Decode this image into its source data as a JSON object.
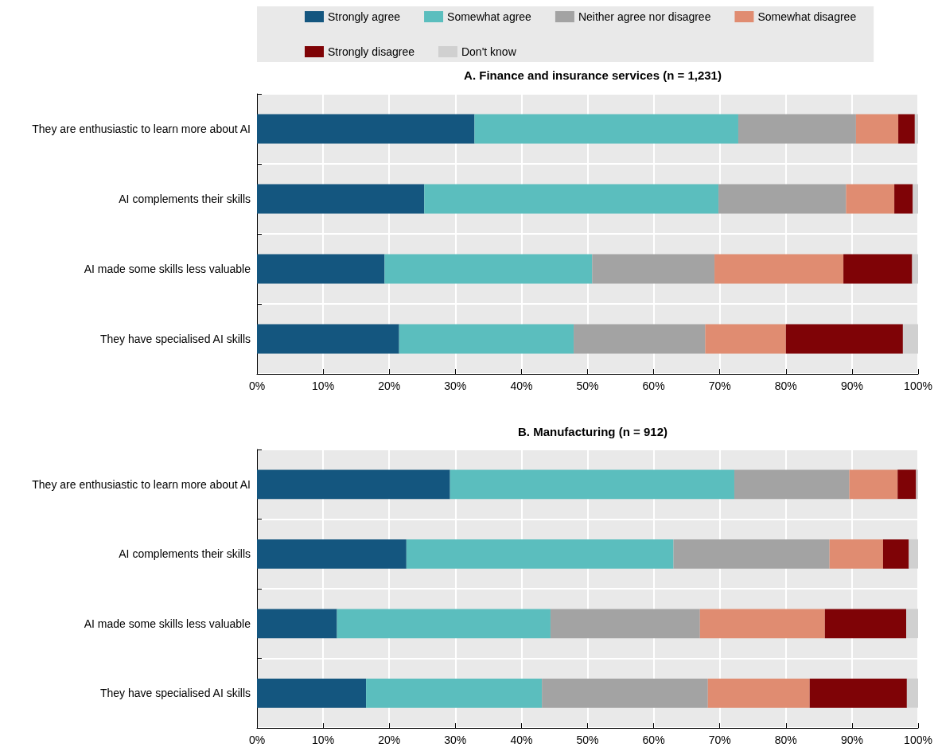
{
  "chart_data": [
    {
      "type": "bar",
      "title": "A. Finance and insurance services (n = 1,231)",
      "orientation": "horizontal",
      "stacked": true,
      "categories": [
        "They are enthusiastic to learn more about AI",
        "AI complements their skills",
        "AI made some skills less valuable",
        "They have specialised AI skills"
      ],
      "series": [
        {
          "name": "Strongly agree",
          "color": "#14567f",
          "values": [
            32.9,
            25.3,
            19.3,
            21.5
          ]
        },
        {
          "name": "Somewhat agree",
          "color": "#5bbebe",
          "values": [
            39.9,
            44.5,
            31.4,
            26.4
          ]
        },
        {
          "name": "Neither agree nor disagree",
          "color": "#a3a3a3",
          "values": [
            17.8,
            19.3,
            18.5,
            19.9
          ]
        },
        {
          "name": "Somewhat disagree",
          "color": "#e08c71",
          "values": [
            6.4,
            7.3,
            19.5,
            12.2
          ]
        },
        {
          "name": "Strongly disagree",
          "color": "#7f0306",
          "values": [
            2.5,
            2.8,
            10.4,
            17.7
          ]
        },
        {
          "name": "Don't know",
          "color": "#d0d0d0",
          "values": [
            0.5,
            0.8,
            0.9,
            2.3
          ]
        }
      ],
      "xlim": [
        0,
        100
      ],
      "xticks": [
        {
          "value": 0,
          "label": "0%"
        },
        {
          "value": 10,
          "label": "10%"
        },
        {
          "value": 20,
          "label": "20%"
        },
        {
          "value": 30,
          "label": "30%"
        },
        {
          "value": 40,
          "label": "40%"
        },
        {
          "value": 50,
          "label": "50%"
        },
        {
          "value": 60,
          "label": "60%"
        },
        {
          "value": 70,
          "label": "70%"
        },
        {
          "value": 80,
          "label": "80%"
        },
        {
          "value": 90,
          "label": "90%"
        },
        {
          "value": 100,
          "label": "100%"
        }
      ],
      "grid": true,
      "legend": "top"
    },
    {
      "type": "bar",
      "title": "B. Manufacturing (n = 912)",
      "orientation": "horizontal",
      "stacked": true,
      "categories": [
        "They are enthusiastic to learn more about AI",
        "AI complements their skills",
        "AI made some skills less valuable",
        "They have specialised AI skills"
      ],
      "series": [
        {
          "color": "#14567f",
          "values": [
            29.2,
            22.6,
            12.1,
            16.5
          ]
        },
        {
          "color": "#5bbebe",
          "values": [
            43.0,
            40.4,
            32.3,
            26.6
          ]
        },
        {
          "color": "#a3a3a3",
          "values": [
            17.4,
            23.6,
            22.6,
            25.1
          ]
        },
        {
          "color": "#e08c71",
          "values": [
            7.3,
            8.1,
            18.9,
            15.4
          ]
        },
        {
          "color": "#7f0306",
          "values": [
            2.8,
            3.9,
            12.3,
            14.7
          ]
        },
        {
          "color": "#d0d0d0",
          "values": [
            0.3,
            1.4,
            1.8,
            1.7
          ]
        }
      ],
      "xlim": [
        0,
        100
      ],
      "xticks": [
        {
          "value": 0,
          "label": "0%"
        },
        {
          "value": 10,
          "label": "10%"
        },
        {
          "value": 20,
          "label": "20%"
        },
        {
          "value": 30,
          "label": "30%"
        },
        {
          "value": 40,
          "label": "40%"
        },
        {
          "value": 50,
          "label": "50%"
        },
        {
          "value": 60,
          "label": "60%"
        },
        {
          "value": 70,
          "label": "70%"
        },
        {
          "value": 80,
          "label": "80%"
        },
        {
          "value": 90,
          "label": "90%"
        },
        {
          "value": 100,
          "label": "100%"
        }
      ],
      "grid": true,
      "legend": false
    }
  ]
}
